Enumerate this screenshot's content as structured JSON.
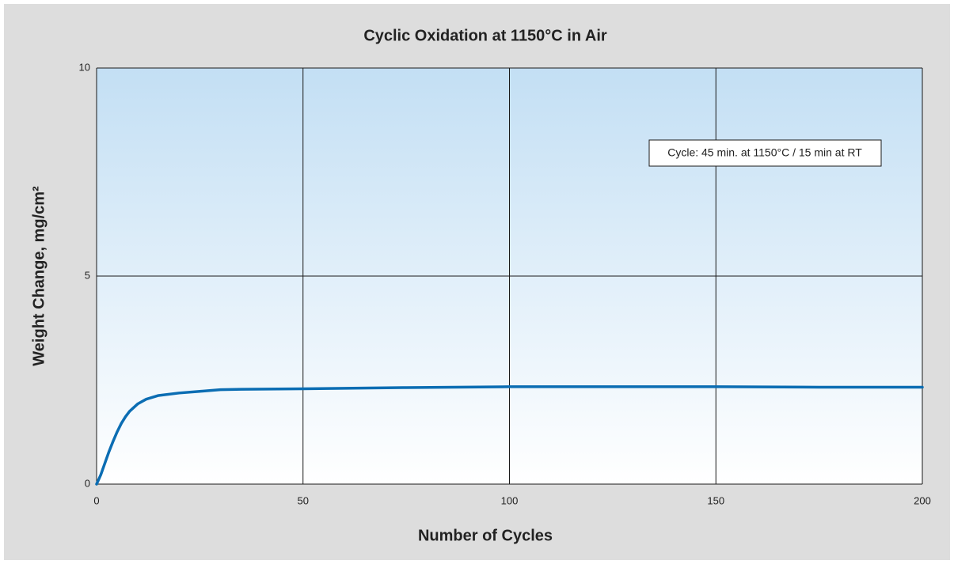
{
  "chart_data": {
    "type": "line",
    "title": "Cyclic Oxidation at 1150°C in Air",
    "x_label": "Number of Cycles",
    "y_label": "Weight Change, mg/cm²",
    "annotation": "Cycle: 45 min. at 1150°C / 15 min at RT",
    "x": [
      0,
      1,
      2,
      3,
      4,
      5,
      6,
      7,
      8,
      10,
      12,
      15,
      20,
      25,
      30,
      35,
      50,
      75,
      100,
      125,
      150,
      175,
      200
    ],
    "series": [
      {
        "name": "Weight change",
        "color": "#0b6db3",
        "values": [
          0,
          0.22,
          0.5,
          0.78,
          1.03,
          1.26,
          1.46,
          1.62,
          1.75,
          1.93,
          2.04,
          2.13,
          2.19,
          2.23,
          2.27,
          2.28,
          2.29,
          2.32,
          2.34,
          2.34,
          2.34,
          2.33,
          2.33
        ]
      }
    ],
    "xlim": [
      0,
      200
    ],
    "xticks": [
      0,
      50,
      100,
      150,
      200
    ],
    "ylim": [
      0,
      10
    ],
    "yticks": [
      0,
      5,
      10
    ],
    "grid": true
  }
}
